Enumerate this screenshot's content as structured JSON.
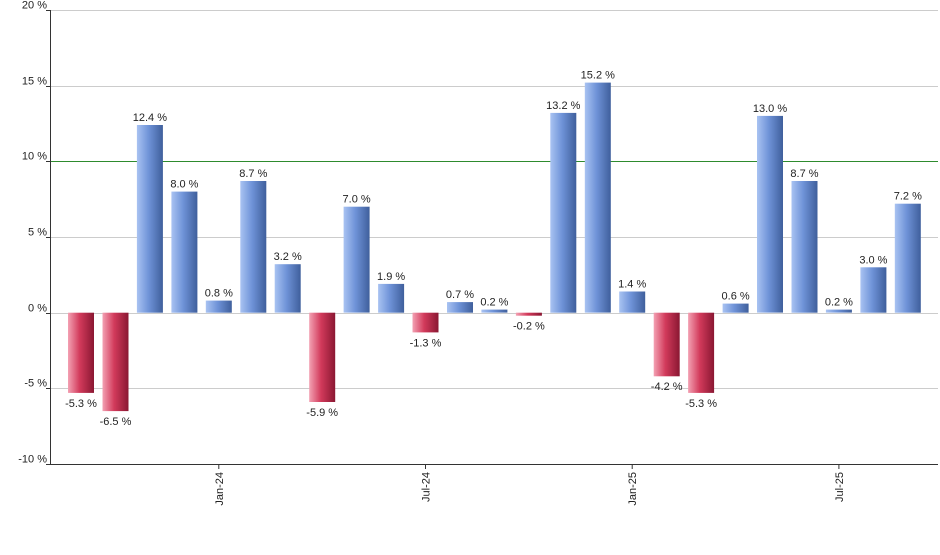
{
  "chart_data": {
    "type": "bar",
    "title": "",
    "xlabel": "",
    "ylabel": "",
    "ylim": [
      -10,
      20
    ],
    "y_ticks": [
      20,
      15,
      10,
      5,
      0,
      -5,
      -10
    ],
    "y_tick_labels": [
      "20 %",
      "15 %",
      "10 %",
      "5 %",
      "0 %",
      "-5 %",
      "-10 %"
    ],
    "grid": true,
    "reference_line": 10,
    "x_tick_labels": [
      {
        "label": "Jan-24",
        "bar_index": 4
      },
      {
        "label": "Jul-24",
        "bar_index": 10
      },
      {
        "label": "Jan-25",
        "bar_index": 16
      },
      {
        "label": "Jul-25",
        "bar_index": 22
      }
    ],
    "values": [
      -5.3,
      -6.5,
      12.4,
      8.0,
      0.8,
      8.7,
      3.2,
      -5.9,
      7.0,
      1.9,
      -1.3,
      0.7,
      0.2,
      -0.2,
      13.2,
      15.2,
      1.4,
      -4.2,
      -5.3,
      0.6,
      13.0,
      8.7,
      0.2,
      3.0,
      7.2
    ],
    "value_labels": [
      "-5.3 %",
      "-6.5 %",
      "12.4 %",
      "8.0 %",
      "0.8 %",
      "8.7 %",
      "3.2 %",
      "-5.9 %",
      "7.0 %",
      "1.9 %",
      "-1.3 %",
      "0.7 %",
      "0.2 %",
      "-0.2 %",
      "13.2 %",
      "15.2 %",
      "1.4 %",
      "-4.2 %",
      "-5.3 %",
      "0.6 %",
      "13.0 %",
      "8.7 %",
      "0.2 %",
      "3.0 %",
      "7.2 %"
    ],
    "colors": {
      "positive_light": "#a9c3f2",
      "positive_mid": "#6f93d8",
      "positive_dark": "#3f5f9c",
      "negative_light": "#f3a1b3",
      "negative_mid": "#d23a5b",
      "negative_dark": "#8a1732",
      "reference_line": "#2e8b2e",
      "grid": "#cccccc",
      "axis": "#333333"
    }
  }
}
